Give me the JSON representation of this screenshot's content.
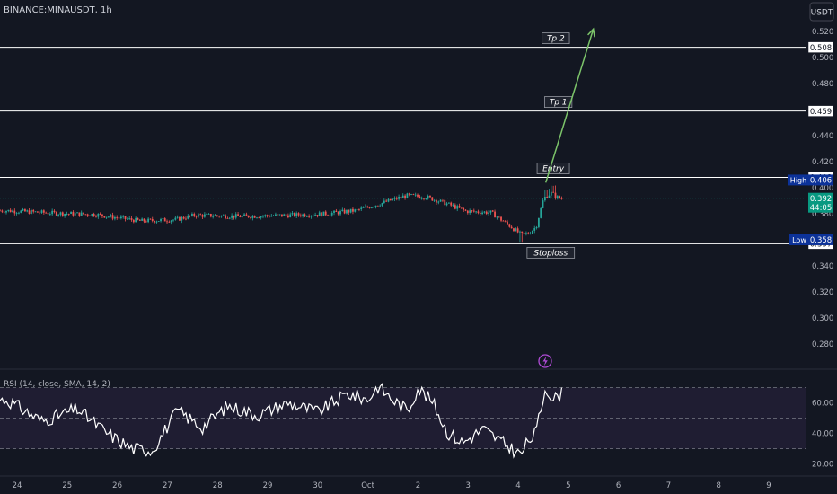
{
  "header": {
    "symbol": "BINANCE:MINAUSDT, 1h",
    "currency": "USDT"
  },
  "colors": {
    "background": "#131722",
    "bullish": "#26a69a",
    "bearish": "#ef5350",
    "level_line": "#ffffff",
    "arrow": "#7cc46a",
    "rsi_line": "#ffffff",
    "rsi_band": "#2a2340",
    "current_price_tag": "#089981",
    "high_low_tag": "#0c3299"
  },
  "chart_data": [
    {
      "type": "candlestick",
      "symbol": "BINANCE:MINAUSDT",
      "interval": "1h",
      "x_ticks": [
        "24",
        "25",
        "26",
        "27",
        "28",
        "29",
        "30",
        "Oct",
        "2",
        "3",
        "4",
        "5",
        "6",
        "7",
        "8",
        "9"
      ],
      "y_ticks": [
        "0.520",
        "0.500",
        "0.480",
        "0.460",
        "0.440",
        "0.420",
        "0.400",
        "0.380",
        "0.360",
        "0.340",
        "0.320",
        "0.300",
        "0.280"
      ],
      "y_range": [
        0.2655,
        0.5305
      ],
      "price_anchors": [
        {
          "day": 23.8,
          "price": 0.3825
        },
        {
          "day": 24.8,
          "price": 0.3805
        },
        {
          "day": 25.6,
          "price": 0.3795
        },
        {
          "day": 26.5,
          "price": 0.3745
        },
        {
          "day": 27.2,
          "price": 0.3755
        },
        {
          "day": 27.6,
          "price": 0.379
        },
        {
          "day": 28.5,
          "price": 0.378
        },
        {
          "day": 29.5,
          "price": 0.379
        },
        {
          "day": 30.2,
          "price": 0.38
        },
        {
          "day": 30.8,
          "price": 0.3825
        },
        {
          "day": 31.3,
          "price": 0.388
        },
        {
          "day": 31.8,
          "price": 0.394
        },
        {
          "day": 32.2,
          "price": 0.393
        },
        {
          "day": 32.6,
          "price": 0.388
        },
        {
          "day": 33.0,
          "price": 0.382
        },
        {
          "day": 33.5,
          "price": 0.381
        },
        {
          "day": 33.9,
          "price": 0.37
        },
        {
          "day": 34.1,
          "price": 0.364
        },
        {
          "day": 34.25,
          "price": 0.365
        },
        {
          "day": 34.4,
          "price": 0.37
        },
        {
          "day": 34.55,
          "price": 0.392
        },
        {
          "day": 34.7,
          "price": 0.396
        },
        {
          "day": 34.85,
          "price": 0.392
        }
      ],
      "levels": [
        {
          "name": "Tp 2",
          "price": 0.508,
          "label": "0.508"
        },
        {
          "name": "Tp 1",
          "price": 0.459,
          "label": "0.459"
        },
        {
          "name": "Entry",
          "price": 0.408,
          "label": "0.408"
        },
        {
          "name": "Stoploss",
          "price": 0.357,
          "label": "0.357"
        }
      ],
      "high": {
        "label": "High",
        "value": "0.406",
        "price": 0.406
      },
      "low": {
        "label": "Low",
        "value": "0.358",
        "price": 0.358
      },
      "current": {
        "value": "0.392",
        "countdown": "44:05",
        "price": 0.392
      },
      "arrow": {
        "from": {
          "day": 34.55,
          "price": 0.404
        },
        "to": {
          "day": 35.5,
          "price": 0.522
        }
      },
      "annotations": [
        "Tp 2",
        "Tp 1",
        "Entry",
        "Stoploss"
      ]
    },
    {
      "type": "line",
      "title": "RSI (14, close, SMA, 14, 2)",
      "y_ticks": [
        "60.00",
        "40.00",
        "20.00"
      ],
      "y_range": [
        18,
        78
      ],
      "bands": [
        70,
        50,
        30
      ],
      "rsi_anchors": [
        {
          "day": 23.8,
          "value": 62
        },
        {
          "day": 24.5,
          "value": 48
        },
        {
          "day": 25.2,
          "value": 56
        },
        {
          "day": 25.8,
          "value": 40
        },
        {
          "day": 26.3,
          "value": 30
        },
        {
          "day": 26.7,
          "value": 29
        },
        {
          "day": 27.2,
          "value": 55
        },
        {
          "day": 27.7,
          "value": 44
        },
        {
          "day": 28.2,
          "value": 58
        },
        {
          "day": 28.8,
          "value": 52
        },
        {
          "day": 29.4,
          "value": 60
        },
        {
          "day": 30.0,
          "value": 54
        },
        {
          "day": 30.6,
          "value": 66
        },
        {
          "day": 31.0,
          "value": 62
        },
        {
          "day": 31.2,
          "value": 71
        },
        {
          "day": 31.5,
          "value": 62
        },
        {
          "day": 31.8,
          "value": 55
        },
        {
          "day": 32.0,
          "value": 70
        },
        {
          "day": 32.3,
          "value": 60
        },
        {
          "day": 32.6,
          "value": 40
        },
        {
          "day": 32.9,
          "value": 34
        },
        {
          "day": 33.3,
          "value": 43
        },
        {
          "day": 33.6,
          "value": 36
        },
        {
          "day": 34.05,
          "value": 26
        },
        {
          "day": 34.2,
          "value": 35
        },
        {
          "day": 34.35,
          "value": 40
        },
        {
          "day": 34.55,
          "value": 71
        },
        {
          "day": 34.7,
          "value": 62
        },
        {
          "day": 34.85,
          "value": 66
        }
      ]
    }
  ]
}
